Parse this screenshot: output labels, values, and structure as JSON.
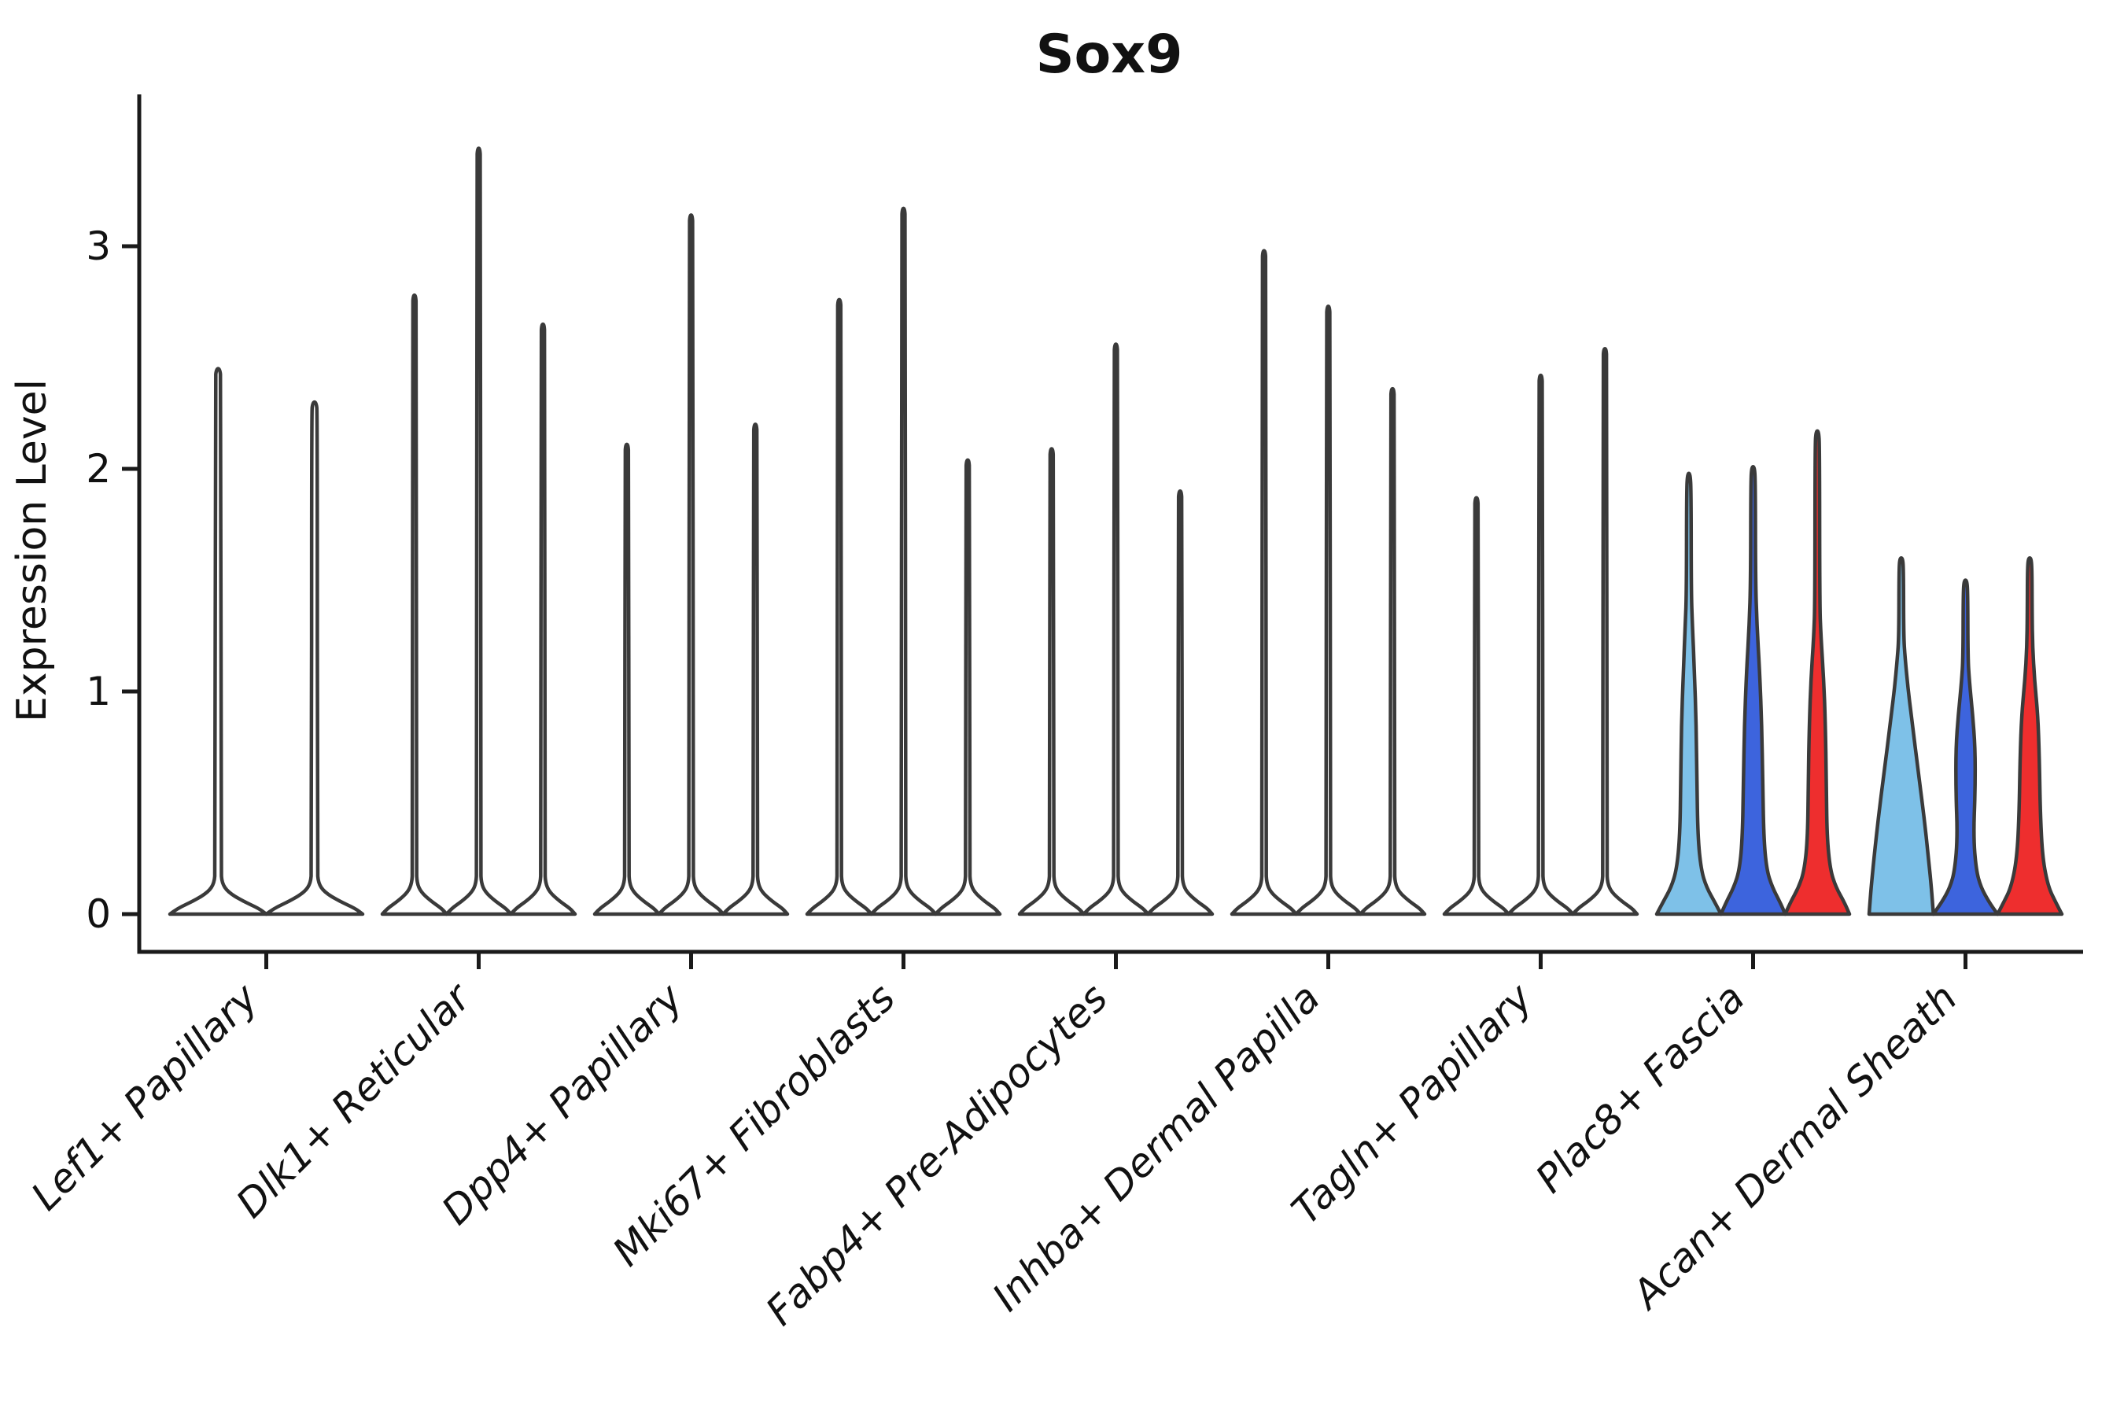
{
  "title": "Sox9",
  "y_axis": {
    "label": "Expression Level",
    "ticks": [
      "0",
      "1",
      "2",
      "3"
    ]
  },
  "colors": {
    "outline": "#3A3A3A",
    "axis": "#1A1A1A",
    "spike_fill": "#FFFFFF",
    "light_blue": "#7EC1E8",
    "dark_blue": "#3D64DD",
    "red": "#EE2E2E",
    "background": "#FFFFFF"
  },
  "chart_data": {
    "type": "violin",
    "title": "Sox9",
    "xlabel": "",
    "ylabel": "Expression Level",
    "yticks": [
      0,
      1,
      2,
      3
    ],
    "ylim": [
      0,
      3.6
    ],
    "grid": false,
    "legend": null,
    "series_note": "Each category holds 2-3 unlabeled split violins; violins are white/unfilled spikes except the last two categories which are filled light-blue, dark-blue and red. Profiles are [expression_value, half_width_fraction] density outlines.",
    "categories": [
      "Lef1+ Papillary",
      "Dlk1+ Reticular",
      "Dpp4+ Papillary",
      "Mki67+ Fibroblasts",
      "Fabp4+ Pre-Adipocytes",
      "Inhba+ Dermal Papilla",
      "Tagln+ Papillary",
      "Plac8+ Fascia",
      "Acan+ Dermal Sheath"
    ],
    "groups": [
      {
        "category": "Lef1+ Papillary",
        "violins": [
          {
            "fill": "spike_fill",
            "max_expression": 2.45,
            "profile": "spike"
          },
          {
            "fill": "spike_fill",
            "max_expression": 2.3,
            "profile": "spike"
          }
        ]
      },
      {
        "category": "Dlk1+ Reticular",
        "violins": [
          {
            "fill": "spike_fill",
            "max_expression": 2.78,
            "profile": "spike"
          },
          {
            "fill": "spike_fill",
            "max_expression": 3.44,
            "profile": "spike"
          },
          {
            "fill": "spike_fill",
            "max_expression": 2.65,
            "profile": "spike"
          }
        ]
      },
      {
        "category": "Dpp4+ Papillary",
        "violins": [
          {
            "fill": "spike_fill",
            "max_expression": 2.11,
            "profile": "spike"
          },
          {
            "fill": "spike_fill",
            "max_expression": 3.14,
            "profile": "spike"
          },
          {
            "fill": "spike_fill",
            "max_expression": 2.2,
            "profile": "spike"
          }
        ]
      },
      {
        "category": "Mki67+ Fibroblasts",
        "violins": [
          {
            "fill": "spike_fill",
            "max_expression": 2.76,
            "profile": "spike"
          },
          {
            "fill": "spike_fill",
            "max_expression": 3.17,
            "profile": "spike"
          },
          {
            "fill": "spike_fill",
            "max_expression": 2.04,
            "profile": "spike"
          }
        ]
      },
      {
        "category": "Fabp4+ Pre-Adipocytes",
        "violins": [
          {
            "fill": "spike_fill",
            "max_expression": 2.09,
            "profile": "spike"
          },
          {
            "fill": "spike_fill",
            "max_expression": 2.56,
            "profile": "spike"
          },
          {
            "fill": "spike_fill",
            "max_expression": 1.9,
            "profile": "spike"
          }
        ]
      },
      {
        "category": "Inhba+ Dermal Papilla",
        "violins": [
          {
            "fill": "spike_fill",
            "max_expression": 2.98,
            "profile": "spike"
          },
          {
            "fill": "spike_fill",
            "max_expression": 2.73,
            "profile": "spike"
          },
          {
            "fill": "spike_fill",
            "max_expression": 2.36,
            "profile": "spike"
          }
        ]
      },
      {
        "category": "Tagln+ Papillary",
        "violins": [
          {
            "fill": "spike_fill",
            "max_expression": 1.87,
            "profile": "spike"
          },
          {
            "fill": "spike_fill",
            "max_expression": 2.42,
            "profile": "spike"
          },
          {
            "fill": "spike_fill",
            "max_expression": 2.54,
            "profile": "spike"
          }
        ]
      },
      {
        "category": "Plac8+ Fascia",
        "violins": [
          {
            "fill": "light_blue",
            "max_expression": 1.98,
            "profile": [
              [
                0,
                1
              ],
              [
                0.05,
                0.82
              ],
              [
                0.12,
                0.55
              ],
              [
                0.2,
                0.38
              ],
              [
                0.35,
                0.28
              ],
              [
                0.6,
                0.25
              ],
              [
                0.85,
                0.23
              ],
              [
                1.1,
                0.17
              ],
              [
                1.3,
                0.11
              ],
              [
                1.45,
                0.075
              ],
              [
                1.9,
                0.07
              ],
              [
                1.98,
                0.04
              ]
            ]
          },
          {
            "fill": "dark_blue",
            "max_expression": 2.01,
            "profile": [
              [
                0,
                1
              ],
              [
                0.05,
                0.85
              ],
              [
                0.12,
                0.6
              ],
              [
                0.2,
                0.42
              ],
              [
                0.35,
                0.33
              ],
              [
                0.6,
                0.3
              ],
              [
                0.85,
                0.27
              ],
              [
                1.1,
                0.2
              ],
              [
                1.3,
                0.12
              ],
              [
                1.5,
                0.075
              ],
              [
                1.95,
                0.07
              ],
              [
                2.01,
                0.04
              ]
            ]
          },
          {
            "fill": "red",
            "max_expression": 2.17,
            "profile": [
              [
                0,
                1
              ],
              [
                0.05,
                0.85
              ],
              [
                0.12,
                0.58
              ],
              [
                0.2,
                0.4
              ],
              [
                0.35,
                0.3
              ],
              [
                0.6,
                0.28
              ],
              [
                0.85,
                0.25
              ],
              [
                1.05,
                0.2
              ],
              [
                1.25,
                0.11
              ],
              [
                1.4,
                0.075
              ],
              [
                2.1,
                0.07
              ],
              [
                2.17,
                0.04
              ]
            ]
          }
        ]
      },
      {
        "category": "Acan+ Dermal Sheath",
        "violins": [
          {
            "fill": "light_blue",
            "max_expression": 1.6,
            "profile": [
              [
                0,
                1
              ],
              [
                0.1,
                0.95
              ],
              [
                0.25,
                0.85
              ],
              [
                0.45,
                0.7
              ],
              [
                0.65,
                0.52
              ],
              [
                0.85,
                0.35
              ],
              [
                1.0,
                0.22
              ],
              [
                1.15,
                0.12
              ],
              [
                1.25,
                0.075
              ],
              [
                1.55,
                0.07
              ],
              [
                1.6,
                0.04
              ]
            ]
          },
          {
            "fill": "dark_blue",
            "max_expression": 1.5,
            "profile": [
              [
                0,
                1
              ],
              [
                0.05,
                0.75
              ],
              [
                0.12,
                0.48
              ],
              [
                0.2,
                0.33
              ],
              [
                0.35,
                0.25
              ],
              [
                0.55,
                0.3
              ],
              [
                0.75,
                0.3
              ],
              [
                0.9,
                0.22
              ],
              [
                1.05,
                0.12
              ],
              [
                1.15,
                0.075
              ],
              [
                1.45,
                0.07
              ],
              [
                1.5,
                0.04
              ]
            ]
          },
          {
            "fill": "red",
            "max_expression": 1.6,
            "profile": [
              [
                0,
                1
              ],
              [
                0.05,
                0.82
              ],
              [
                0.12,
                0.58
              ],
              [
                0.25,
                0.4
              ],
              [
                0.45,
                0.33
              ],
              [
                0.7,
                0.3
              ],
              [
                0.9,
                0.25
              ],
              [
                1.05,
                0.15
              ],
              [
                1.2,
                0.09
              ],
              [
                1.35,
                0.075
              ],
              [
                1.55,
                0.07
              ],
              [
                1.6,
                0.04
              ]
            ]
          }
        ]
      }
    ]
  }
}
